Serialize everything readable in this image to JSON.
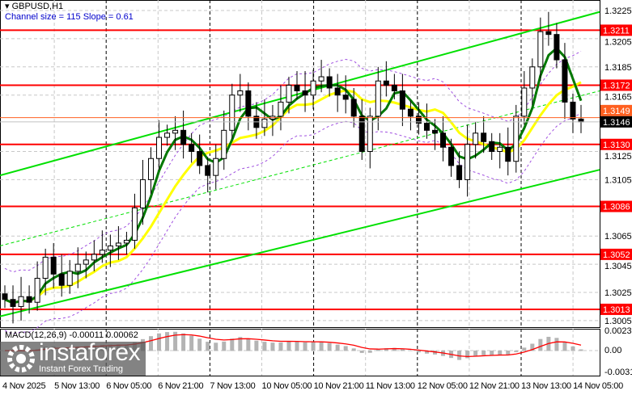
{
  "header": {
    "symbol": "GBPUSD,H1",
    "channel": "Channel size = 115 Slope = 0.61"
  },
  "macd": {
    "label": "MACD(12,26,9) -0.00011 0.00062",
    "scale": [
      "0.00239",
      "0.00",
      "-0.00312"
    ]
  },
  "logo": {
    "brand": "instaforex",
    "tagline": "Instant Forex Trading"
  },
  "colors": {
    "level": "#ff0000",
    "channel": "#00e000",
    "fast_ma": "#007800",
    "slow_ma": "#ffff00",
    "envelope": "#a050e0",
    "signal": "#ff0000",
    "histogram": "#b4b4b4"
  },
  "chart_data": {
    "type": "candlestick",
    "title": "GBPUSD,H1",
    "ylim": [
      1.2995,
      1.3232
    ],
    "yticks": [
      "1.3225",
      "1.3205",
      "1.3185",
      "1.3165",
      "1.3125",
      "1.3105",
      "1.3065",
      "1.3045",
      "1.3025",
      "1.3005"
    ],
    "levels": [
      "1.3211",
      "1.3172",
      "1.3130",
      "1.3086",
      "1.3052",
      "1.3013"
    ],
    "current_price": "1.3146",
    "ask_label": "1.3149",
    "xticks": [
      "4 Nov 2025",
      "5 Nov 13:00",
      "6 Nov 05:00",
      "6 Nov 21:00",
      "7 Nov 13:00",
      "10 Nov 05:00",
      "10 Nov 21:00",
      "11 Nov 13:00",
      "12 Nov 05:00",
      "12 Nov 21:00",
      "13 Nov 13:00",
      "14 Nov 05:00"
    ],
    "channel": {
      "upper": [
        1.3108,
        1.3224
      ],
      "lower": [
        1.3008,
        1.3112
      ]
    },
    "closes": [
      1.302,
      1.3015,
      1.3022,
      1.3018,
      1.3035,
      1.305,
      1.3038,
      1.303,
      1.304,
      1.3045,
      1.3048,
      1.3052,
      1.3055,
      1.3058,
      1.306,
      1.3062,
      1.3085,
      1.3105,
      1.312,
      1.3135,
      1.3138,
      1.314,
      1.313,
      1.3125,
      1.3115,
      1.3108,
      1.312,
      1.314,
      1.3165,
      1.3168,
      1.315,
      1.3142,
      1.3148,
      1.315,
      1.316,
      1.3172,
      1.3168,
      1.3165,
      1.3175,
      1.3178,
      1.317,
      1.3165,
      1.3162,
      1.315,
      1.3125,
      1.315,
      1.3175,
      1.3172,
      1.3168,
      1.3155,
      1.315,
      1.3145,
      1.314,
      1.3138,
      1.3128,
      1.3115,
      1.3105,
      1.313,
      1.3138,
      1.3132,
      1.3125,
      1.3128,
      1.3118,
      1.315,
      1.317,
      1.3185,
      1.321,
      1.3208,
      1.319,
      1.316,
      1.3148,
      1.3146
    ]
  }
}
